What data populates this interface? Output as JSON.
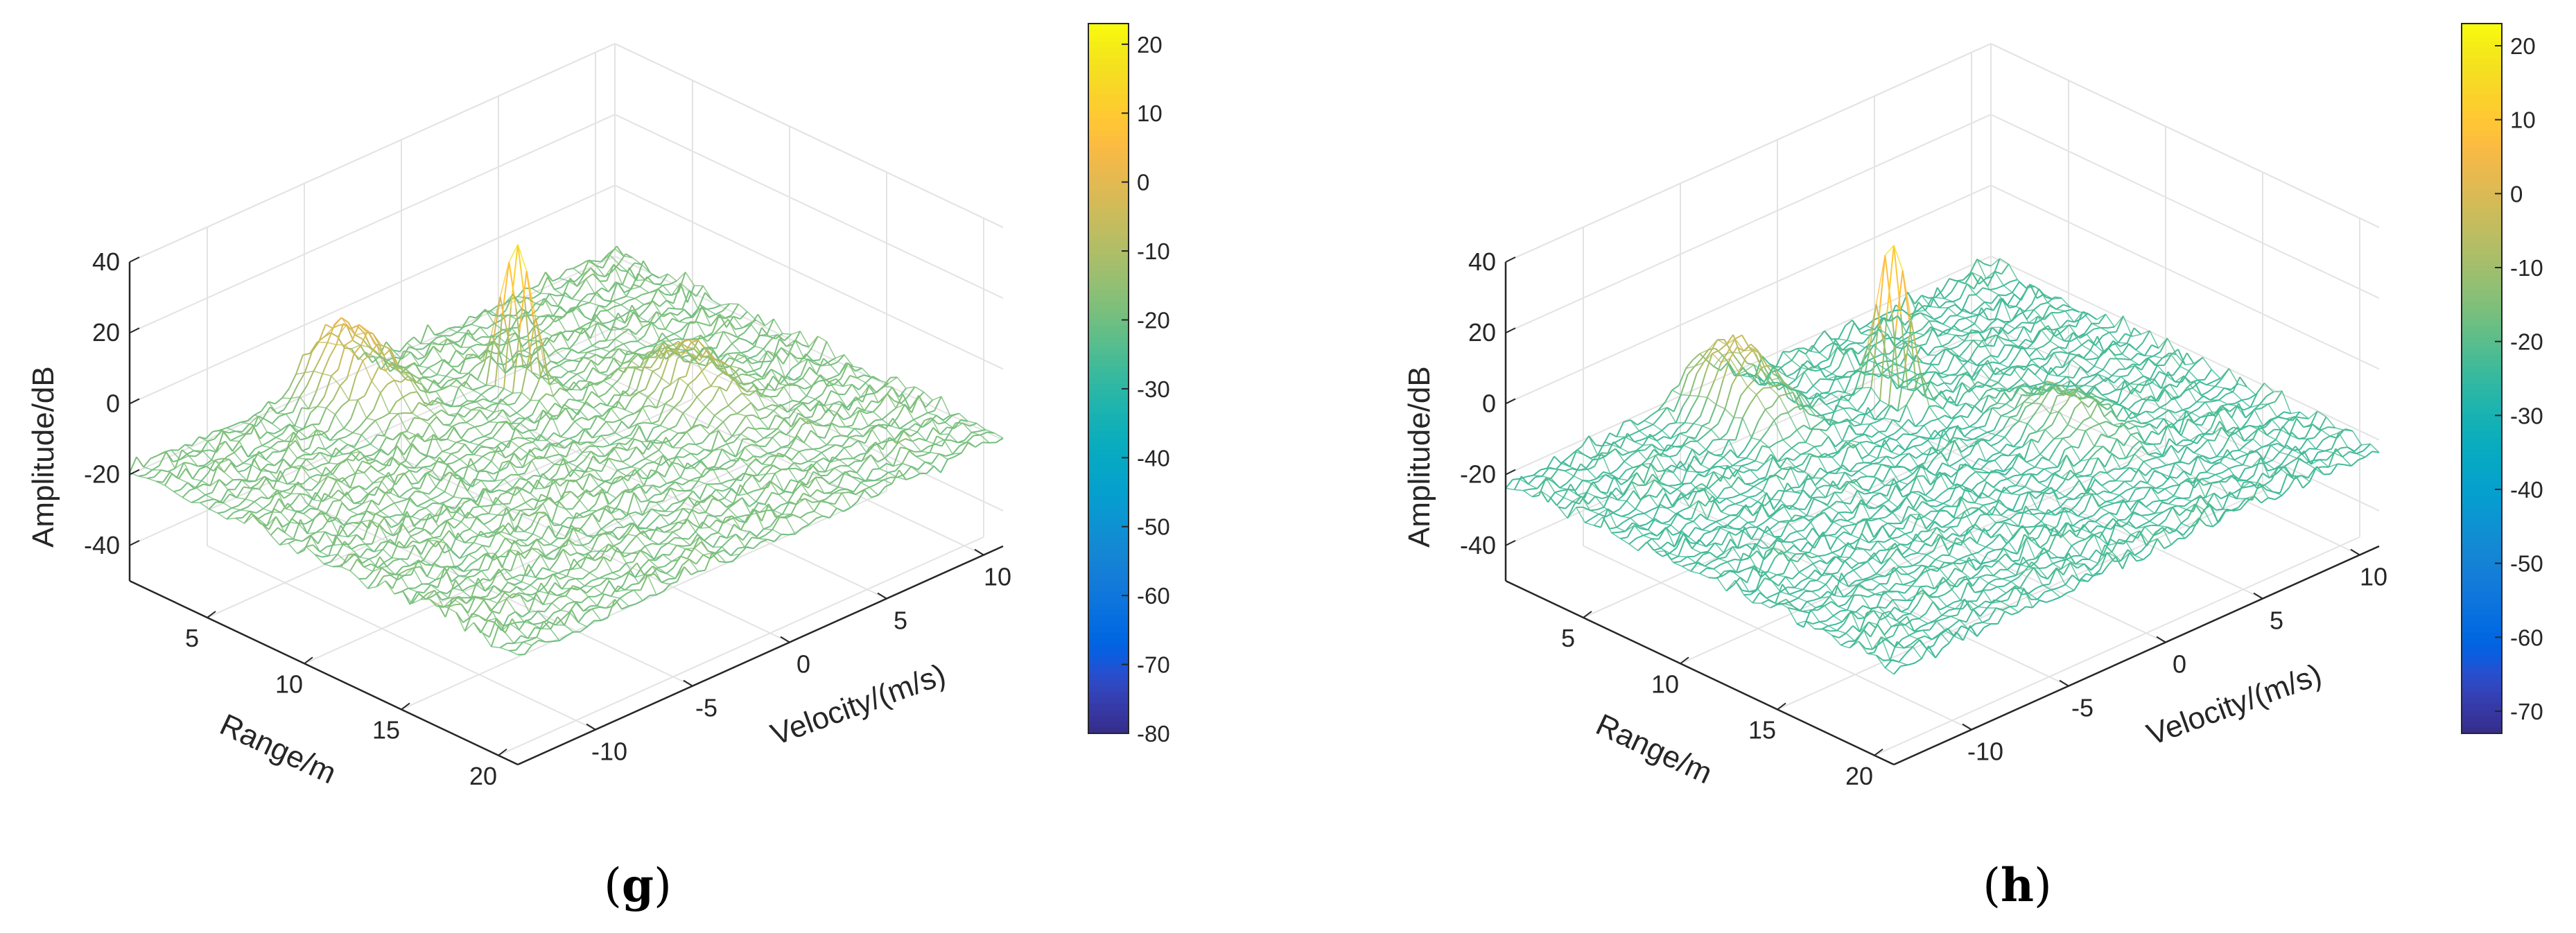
{
  "chart_data": [
    {
      "type": "surface3d",
      "panel_label": {
        "open": "(",
        "letter": "g",
        "close": ")"
      },
      "xlabel": "Range/m",
      "ylabel": "Velocity/(m/s)",
      "zlabel": "Amplitude/dB",
      "xlim": [
        1,
        21
      ],
      "ylim": [
        -14,
        11
      ],
      "zlim": [
        -50,
        40
      ],
      "x_ticks": [
        "5",
        "10",
        "15",
        "20"
      ],
      "y_ticks": [
        "-10",
        "-5",
        "0",
        "5",
        "10"
      ],
      "z_ticks": [
        "40",
        "20",
        "0",
        "-20",
        "-40"
      ],
      "colorbar": {
        "min": -80,
        "max": 23,
        "ticks": [
          "20",
          "10",
          "0",
          "-10",
          "-20",
          "-30",
          "-40",
          "-50",
          "-60",
          "-70",
          "-80"
        ]
      },
      "noise_floor_db": -20,
      "peaks": [
        {
          "range": 6,
          "velocity": 1,
          "amplitude_db": 22
        },
        {
          "range": 2.5,
          "velocity": -4,
          "amplitude_db": 2
        },
        {
          "range": 11,
          "velocity": 5,
          "amplitude_db": -5
        }
      ]
    },
    {
      "type": "surface3d",
      "panel_label": {
        "open": "(",
        "letter": "h",
        "close": ")"
      },
      "xlabel": "Range/m",
      "ylabel": "Velocity/(m/s)",
      "zlabel": "Amplitude/dB",
      "xlim": [
        1,
        21
      ],
      "ylim": [
        -14,
        11
      ],
      "zlim": [
        -50,
        40
      ],
      "x_ticks": [
        "5",
        "10",
        "15",
        "20"
      ],
      "y_ticks": [
        "-10",
        "-5",
        "0",
        "5",
        "10"
      ],
      "z_ticks": [
        "40",
        "20",
        "0",
        "-20",
        "-40"
      ],
      "colorbar": {
        "min": -73,
        "max": 23,
        "ticks": [
          "20",
          "10",
          "0",
          "-10",
          "-20",
          "-30",
          "-40",
          "-50",
          "-60",
          "-70"
        ]
      },
      "noise_floor_db": -24,
      "peaks": [
        {
          "range": 6,
          "velocity": 1,
          "amplitude_db": 22
        },
        {
          "range": 3,
          "velocity": -4,
          "amplitude_db": -2
        },
        {
          "range": 12,
          "velocity": 4,
          "amplitude_db": -12
        }
      ]
    }
  ]
}
